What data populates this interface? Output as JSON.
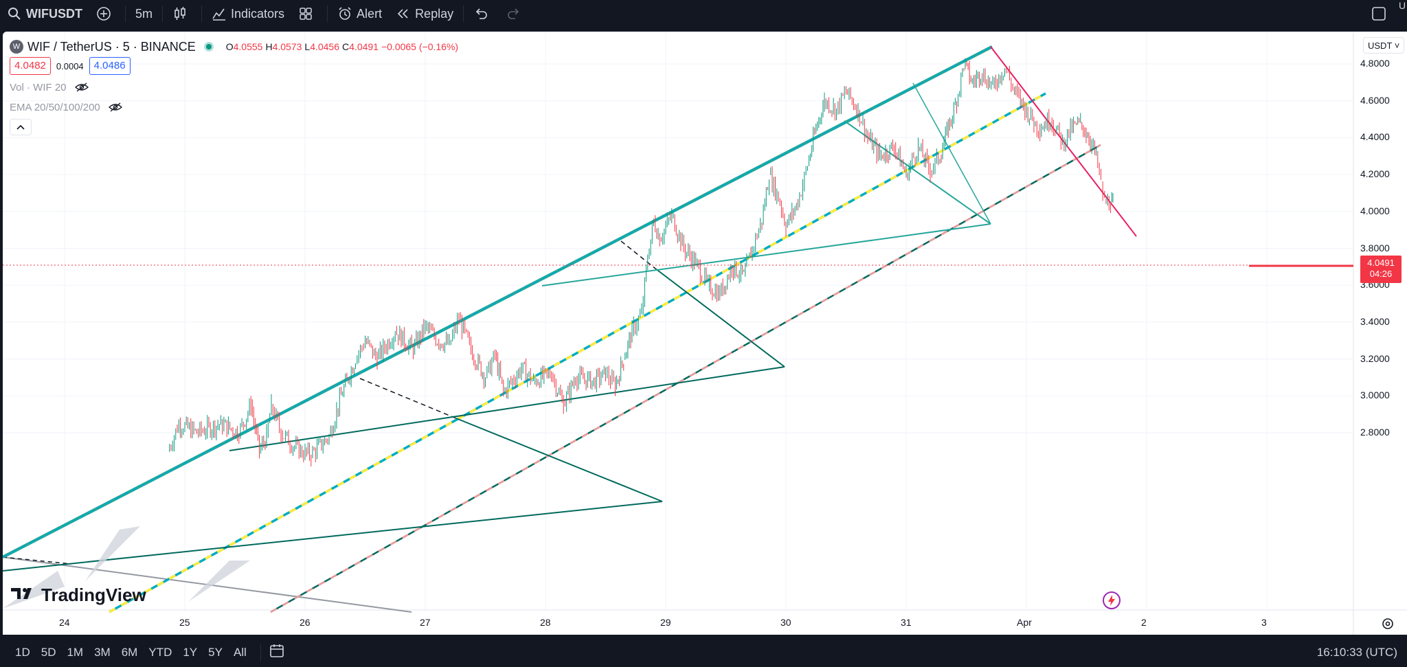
{
  "toolbar": {
    "symbol": "WIFUSDT",
    "interval": "5m",
    "indicators_label": "Indicators",
    "alert_label": "Alert",
    "replay_label": "Replay",
    "right_edge_text": "U"
  },
  "legend": {
    "symbol_logo": "W",
    "title": "WIF / TetherUS · 5 · BINANCE",
    "open_key": "O",
    "open": "4.0555",
    "high_key": "H",
    "high": "4.0573",
    "low_key": "L",
    "low": "4.0456",
    "close_key": "C",
    "close": "4.0491",
    "change": "−0.0065 (−0.16%)",
    "bid": "4.0482",
    "spread": "0.0004",
    "ask": "4.0486",
    "indicator_1": "Vol · WIF 20",
    "indicator_2": "EMA 20/50/100/200"
  },
  "currency": "USDT ˅",
  "last_price": {
    "value": "4.0491",
    "countdown": "04:26"
  },
  "watermark": "TradingView",
  "bottom": {
    "ranges": [
      "1D",
      "5D",
      "1M",
      "3M",
      "6M",
      "YTD",
      "1Y",
      "5Y",
      "All"
    ],
    "clock": "16:10:33 (UTC)"
  },
  "colors": {
    "up": "#089981",
    "down": "#f23645",
    "channel": "#00acc1",
    "midline": "#ffeb3b",
    "trend_dark": "#00695c",
    "trend_light": "#26a69a",
    "descending": "#e91e63"
  },
  "chart_data": {
    "type": "candlestick",
    "symbol": "WIF / TetherUS",
    "interval": "5",
    "exchange": "BINANCE",
    "y_ticks": [
      "4.8000",
      "4.6000",
      "4.4000",
      "4.2000",
      "4.0000",
      "3.8000",
      "3.6000",
      "3.4000",
      "3.2000",
      "3.0000",
      "2.8000"
    ],
    "x_ticks": [
      "24",
      "25",
      "26",
      "27",
      "28",
      "29",
      "30",
      "31",
      "Apr",
      "2",
      "3"
    ],
    "ylim": [
      2.62,
      4.95
    ],
    "xlim": [
      23.5,
      4.0
    ],
    "price_path": [
      [
        24.86,
        2.7
      ],
      [
        24.95,
        2.85
      ],
      [
        25.1,
        2.8
      ],
      [
        25.3,
        2.85
      ],
      [
        25.45,
        2.8
      ],
      [
        25.55,
        2.95
      ],
      [
        25.62,
        2.7
      ],
      [
        25.68,
        2.78
      ],
      [
        25.72,
        2.95
      ],
      [
        25.8,
        2.8
      ],
      [
        25.95,
        2.7
      ],
      [
        26.05,
        2.68
      ],
      [
        26.2,
        2.78
      ],
      [
        26.3,
        3.0
      ],
      [
        26.42,
        3.2
      ],
      [
        26.5,
        3.3
      ],
      [
        26.6,
        3.2
      ],
      [
        26.75,
        3.35
      ],
      [
        26.9,
        3.25
      ],
      [
        27.0,
        3.38
      ],
      [
        27.1,
        3.3
      ],
      [
        27.2,
        3.28
      ],
      [
        27.28,
        3.42
      ],
      [
        27.38,
        3.25
      ],
      [
        27.5,
        3.1
      ],
      [
        27.58,
        3.22
      ],
      [
        27.65,
        3.02
      ],
      [
        27.8,
        3.15
      ],
      [
        27.9,
        3.08
      ],
      [
        28.05,
        3.12
      ],
      [
        28.15,
        2.95
      ],
      [
        28.25,
        3.1
      ],
      [
        28.4,
        3.08
      ],
      [
        28.5,
        3.12
      ],
      [
        28.58,
        3.05
      ],
      [
        28.65,
        3.2
      ],
      [
        28.72,
        3.35
      ],
      [
        28.8,
        3.45
      ],
      [
        28.85,
        3.75
      ],
      [
        28.9,
        3.95
      ],
      [
        28.95,
        3.85
      ],
      [
        29.05,
        3.98
      ],
      [
        29.15,
        3.8
      ],
      [
        29.25,
        3.72
      ],
      [
        29.35,
        3.6
      ],
      [
        29.45,
        3.55
      ],
      [
        29.55,
        3.7
      ],
      [
        29.65,
        3.65
      ],
      [
        29.72,
        3.8
      ],
      [
        29.8,
        3.95
      ],
      [
        29.86,
        4.2
      ],
      [
        29.95,
        4.05
      ],
      [
        30.0,
        3.92
      ],
      [
        30.1,
        4.05
      ],
      [
        30.18,
        4.25
      ],
      [
        30.25,
        4.45
      ],
      [
        30.32,
        4.6
      ],
      [
        30.42,
        4.55
      ],
      [
        30.5,
        4.65
      ],
      [
        30.6,
        4.55
      ],
      [
        30.68,
        4.4
      ],
      [
        30.78,
        4.3
      ],
      [
        30.9,
        4.35
      ],
      [
        31.0,
        4.2
      ],
      [
        31.1,
        4.35
      ],
      [
        31.2,
        4.22
      ],
      [
        31.28,
        4.3
      ],
      [
        31.35,
        4.45
      ],
      [
        31.42,
        4.6
      ],
      [
        31.48,
        4.8
      ],
      [
        31.55,
        4.7
      ],
      [
        31.62,
        4.75
      ],
      [
        31.72,
        4.68
      ],
      [
        31.82,
        4.78
      ],
      [
        31.9,
        4.65
      ],
      [
        32.0,
        4.55
      ],
      [
        32.1,
        4.45
      ],
      [
        32.2,
        4.5
      ],
      [
        32.3,
        4.38
      ],
      [
        32.38,
        4.45
      ],
      [
        32.45,
        4.48
      ],
      [
        32.52,
        4.4
      ],
      [
        32.58,
        4.3
      ],
      [
        32.62,
        4.15
      ],
      [
        32.65,
        4.05
      ],
      [
        32.7,
        4.05
      ],
      [
        32.72,
        4.03
      ]
    ]
  }
}
